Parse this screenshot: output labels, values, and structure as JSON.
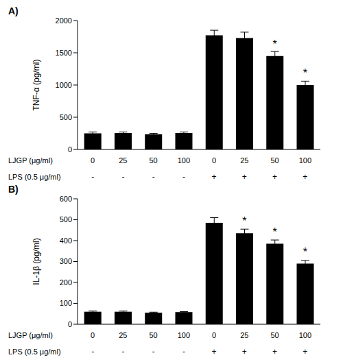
{
  "chart_data": [
    {
      "type": "bar",
      "title": "A)",
      "ylabel": "TNF-α (pg/ml)",
      "color": "#000000",
      "x_label": "LJGP (μg/ml)",
      "categories": [
        "0",
        "25",
        "50",
        "100",
        "0",
        "25",
        "50",
        "100"
      ],
      "lps_label": "LPS (0.5 μg/ml)",
      "lps": [
        "-",
        "-",
        "-",
        "-",
        "+",
        "+",
        "+",
        "+"
      ],
      "values": [
        250,
        255,
        235,
        255,
        1770,
        1730,
        1450,
        1000
      ],
      "errors": [
        20,
        15,
        15,
        15,
        80,
        90,
        70,
        60
      ],
      "significance": [
        null,
        null,
        null,
        null,
        null,
        null,
        "*",
        "*"
      ],
      "ylim": [
        0,
        2000
      ],
      "yticks": [
        0,
        500,
        1000,
        1500,
        2000
      ],
      "grid": false
    },
    {
      "type": "bar",
      "title": "B)",
      "ylabel": "IL-1β (pg/ml)",
      "color": "#000000",
      "x_label": "LJGP (μg/ml)",
      "categories": [
        "0",
        "25",
        "50",
        "100",
        "0",
        "25",
        "50",
        "100"
      ],
      "lps_label": "LPS (0.5 μg/ml)",
      "lps": [
        "-",
        "-",
        "-",
        "-",
        "+",
        "+",
        "+",
        "+"
      ],
      "values": [
        60,
        60,
        55,
        58,
        485,
        435,
        385,
        290
      ],
      "errors": [
        3,
        3,
        3,
        3,
        25,
        20,
        18,
        15
      ],
      "significance": [
        null,
        null,
        null,
        null,
        null,
        "*",
        "*",
        "*"
      ],
      "ylim": [
        0,
        600
      ],
      "yticks": [
        0,
        100,
        200,
        300,
        400,
        500,
        600
      ],
      "grid": false
    }
  ]
}
